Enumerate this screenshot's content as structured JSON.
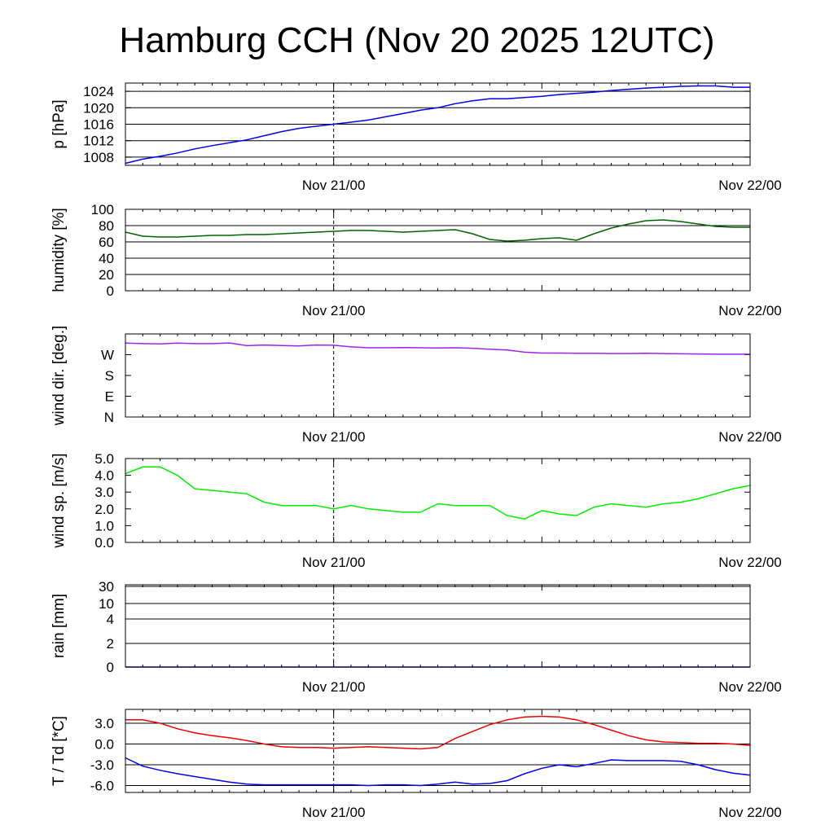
{
  "title": "Hamburg CCH (Nov 20 2025 12UTC)",
  "x_tick_labels": [
    "Nov 21/00",
    "Nov 22/00"
  ],
  "chart_data": [
    {
      "type": "line",
      "ylabel": "p [hPa]",
      "x": [
        0,
        1,
        2,
        3,
        4,
        5,
        6,
        7,
        8,
        9,
        10,
        11,
        12,
        13,
        14,
        15,
        16,
        17,
        18,
        19,
        20,
        21,
        22,
        23,
        24,
        25,
        26,
        27,
        28,
        29,
        30,
        31,
        32,
        33,
        34,
        35,
        36
      ],
      "ylim": [
        1006,
        1026
      ],
      "yticks": [
        1008,
        1012,
        1016,
        1020,
        1024
      ],
      "ytick_labels": [
        "1008",
        "1012",
        "1016",
        "1020",
        "1024"
      ],
      "grid_lines": [
        1008,
        1012,
        1016,
        1020,
        1024
      ],
      "series": [
        {
          "color": "#0000ee",
          "values": [
            1006.5,
            1007.5,
            1008.2,
            1009.0,
            1010.0,
            1010.8,
            1011.5,
            1012.2,
            1013.2,
            1014.2,
            1015.0,
            1015.5,
            1016.0,
            1016.5,
            1017.0,
            1017.8,
            1018.6,
            1019.4,
            1020.0,
            1021.0,
            1021.7,
            1022.2,
            1022.2,
            1022.5,
            1022.8,
            1023.2,
            1023.5,
            1023.8,
            1024.2,
            1024.5,
            1024.8,
            1025.0,
            1025.2,
            1025.3,
            1025.3,
            1025.0,
            1025.0
          ]
        }
      ]
    },
    {
      "type": "line",
      "ylabel": "humidity [%]",
      "x": [
        0,
        1,
        2,
        3,
        4,
        5,
        6,
        7,
        8,
        9,
        10,
        11,
        12,
        13,
        14,
        15,
        16,
        17,
        18,
        19,
        20,
        21,
        22,
        23,
        24,
        25,
        26,
        27,
        28,
        29,
        30,
        31,
        32,
        33,
        34,
        35,
        36
      ],
      "ylim": [
        0,
        100
      ],
      "yticks": [
        0,
        20,
        40,
        60,
        80,
        100
      ],
      "ytick_labels": [
        "0",
        "20",
        "40",
        "60",
        "80",
        "100"
      ],
      "grid_lines": [
        20,
        40,
        60,
        80
      ],
      "series": [
        {
          "color": "#006400",
          "values": [
            72,
            67,
            66,
            66,
            67,
            68,
            68,
            69,
            69,
            70,
            71,
            72,
            73,
            74,
            74,
            73,
            72,
            73,
            74,
            75,
            70,
            63,
            61,
            62,
            64,
            65,
            62,
            70,
            77,
            82,
            86,
            87,
            85,
            82,
            79,
            78,
            78
          ]
        }
      ]
    },
    {
      "type": "line",
      "ylabel": "wind dir. [deg.]",
      "x": [
        0,
        1,
        2,
        3,
        4,
        5,
        6,
        7,
        8,
        9,
        10,
        11,
        12,
        13,
        14,
        15,
        16,
        17,
        18,
        19,
        20,
        21,
        22,
        23,
        24,
        25,
        26,
        27,
        28,
        29,
        30,
        31,
        32,
        33,
        34,
        35,
        36
      ],
      "ylim": [
        0,
        360
      ],
      "yticks": [
        0,
        90,
        180,
        270
      ],
      "ytick_labels": [
        "N",
        "E",
        "S",
        "W"
      ],
      "grid_lines": [],
      "series": [
        {
          "color": "#a020f0",
          "values": [
            320,
            318,
            317,
            320,
            318,
            318,
            321,
            309,
            312,
            310,
            308,
            312,
            311,
            304,
            300,
            300,
            301,
            300,
            299,
            300,
            298,
            294,
            290,
            281,
            277,
            277,
            276,
            276,
            275,
            275,
            276,
            275,
            274,
            273,
            272,
            272,
            272
          ]
        }
      ]
    },
    {
      "type": "line",
      "ylabel": "wind sp. [m/s]",
      "x": [
        0,
        1,
        2,
        3,
        4,
        5,
        6,
        7,
        8,
        9,
        10,
        11,
        12,
        13,
        14,
        15,
        16,
        17,
        18,
        19,
        20,
        21,
        22,
        23,
        24,
        25,
        26,
        27,
        28,
        29,
        30,
        31,
        32,
        33,
        34,
        35,
        36
      ],
      "ylim": [
        0,
        5.0
      ],
      "yticks": [
        0,
        1,
        2,
        3,
        4,
        5
      ],
      "ytick_labels": [
        "0.0",
        "1.0",
        "2.0",
        "3.0",
        "4.0",
        "5.0"
      ],
      "grid_lines": [],
      "series": [
        {
          "color": "#00ee00",
          "values": [
            4.1,
            4.5,
            4.5,
            4.0,
            3.2,
            3.1,
            3.0,
            2.9,
            2.4,
            2.2,
            2.2,
            2.2,
            2.0,
            2.2,
            2.0,
            1.9,
            1.8,
            1.8,
            2.3,
            2.2,
            2.2,
            2.2,
            1.6,
            1.4,
            1.9,
            1.7,
            1.6,
            2.1,
            2.3,
            2.2,
            2.1,
            2.3,
            2.4,
            2.6,
            2.9,
            3.2,
            3.4
          ]
        }
      ]
    },
    {
      "type": "line",
      "ylabel": "rain [mm]",
      "x": [
        0,
        36
      ],
      "yscale": "nonlinear",
      "yticks": [
        0,
        2,
        4,
        10,
        30
      ],
      "ytick_labels": [
        "0",
        "2",
        "4",
        "10",
        "30"
      ],
      "grid_lines": [
        2,
        4,
        10,
        30
      ],
      "series": [
        {
          "color": "#0000ee",
          "values": [
            0,
            0
          ]
        }
      ]
    },
    {
      "type": "line",
      "ylabel": "T / Td [*C]",
      "x": [
        0,
        1,
        2,
        3,
        4,
        5,
        6,
        7,
        8,
        9,
        10,
        11,
        12,
        13,
        14,
        15,
        16,
        17,
        18,
        19,
        20,
        21,
        22,
        23,
        24,
        25,
        26,
        27,
        28,
        29,
        30,
        31,
        32,
        33,
        34,
        35,
        36
      ],
      "ylim": [
        -7,
        5
      ],
      "yticks": [
        -6,
        -3,
        0,
        3
      ],
      "ytick_labels": [
        "-6.0",
        "-3.0",
        "0.0",
        "3.0"
      ],
      "grid_lines": [
        -6,
        -3,
        0,
        3
      ],
      "series": [
        {
          "color": "#ee0000",
          "values": [
            3.5,
            3.5,
            3.0,
            2.2,
            1.6,
            1.2,
            0.9,
            0.5,
            0.0,
            -0.4,
            -0.5,
            -0.5,
            -0.6,
            -0.5,
            -0.4,
            -0.5,
            -0.6,
            -0.7,
            -0.5,
            0.8,
            1.8,
            2.8,
            3.5,
            3.9,
            4.0,
            3.9,
            3.5,
            2.8,
            2.0,
            1.2,
            0.6,
            0.3,
            0.2,
            0.1,
            0.1,
            0.0,
            -0.2
          ]
        },
        {
          "color": "#0000ee",
          "values": [
            -2.0,
            -3.2,
            -3.8,
            -4.3,
            -4.7,
            -5.1,
            -5.5,
            -5.8,
            -5.9,
            -5.9,
            -5.9,
            -5.9,
            -5.9,
            -5.9,
            -6.0,
            -5.9,
            -5.9,
            -6.0,
            -5.8,
            -5.5,
            -5.8,
            -5.7,
            -5.3,
            -4.3,
            -3.5,
            -3.0,
            -3.3,
            -2.8,
            -2.3,
            -2.4,
            -2.4,
            -2.4,
            -2.5,
            -3.0,
            -3.7,
            -4.2,
            -4.5
          ]
        }
      ]
    }
  ]
}
